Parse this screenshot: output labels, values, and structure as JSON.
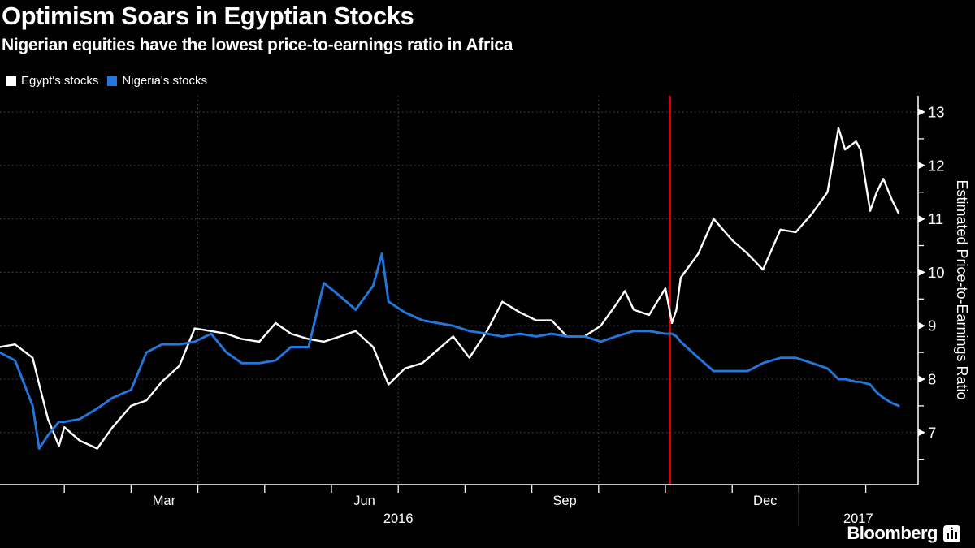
{
  "header": {
    "title": "Optimism Soars in Egyptian Stocks",
    "subtitle": "Nigerian equities have the lowest price-to-earnings ratio in Africa"
  },
  "legend": {
    "items": [
      {
        "label": "Egypt's stocks",
        "color": "#ffffff"
      },
      {
        "label": "Nigeria's stocks",
        "color": "#2377dc"
      }
    ]
  },
  "branding": {
    "logo_text": "Bloomberg"
  },
  "chart_data": {
    "type": "line",
    "title": "Optimism Soars in Egyptian Stocks",
    "subtitle": "Nigerian equities have the lowest price-to-earnings ratio in Africa",
    "xlabel": "",
    "ylabel": "Estimated Price-to-Earnings Ratio",
    "grid": true,
    "legend_position": "top-left",
    "background_color": "#000000",
    "gridline_color": "#4d4d4d",
    "axis_color": "#ffffff",
    "y_axis": {
      "side": "right",
      "ticks": [
        13,
        12,
        11,
        10,
        9,
        8,
        7
      ],
      "minor_ticks": [
        12.5,
        11.5,
        10.5,
        9.5,
        8.5,
        7.5,
        6.5
      ],
      "ylim": [
        6.0,
        13.3
      ]
    },
    "x_axis": {
      "start": "2016-01-01",
      "end": "2017-02-24",
      "month_boundaries": [
        "2016-02-01",
        "2016-03-01",
        "2016-04-01",
        "2016-05-01",
        "2016-06-01",
        "2016-07-01",
        "2016-08-01",
        "2016-09-01",
        "2016-10-01",
        "2016-11-01",
        "2016-12-01",
        "2017-01-01",
        "2017-02-01"
      ],
      "month_labels": [
        {
          "text": "Mar",
          "center": "2016-03-16"
        },
        {
          "text": "Jun",
          "center": "2016-06-16"
        },
        {
          "text": "Sep",
          "center": "2016-09-16"
        },
        {
          "text": "Dec",
          "center": "2016-12-16"
        }
      ],
      "year_labels": [
        {
          "text": "2016",
          "center": "2016-07-01"
        },
        {
          "text": "2017",
          "center": "2017-01-28"
        }
      ],
      "quarter_gridlines": [
        "2016-04-01",
        "2016-07-01",
        "2016-10-01",
        "2017-01-01"
      ],
      "year_divider": "2017-01-01"
    },
    "event_line": {
      "date": "2016-11-03",
      "color": "#e60000"
    },
    "x": [
      "2016-01-02",
      "2016-01-09",
      "2016-01-17",
      "2016-01-20",
      "2016-01-24",
      "2016-01-29",
      "2016-02-01",
      "2016-02-08",
      "2016-02-16",
      "2016-02-23",
      "2016-03-01",
      "2016-03-08",
      "2016-03-15",
      "2016-03-23",
      "2016-03-30",
      "2016-04-07",
      "2016-04-14",
      "2016-04-21",
      "2016-04-29",
      "2016-05-06",
      "2016-05-13",
      "2016-05-21",
      "2016-05-28",
      "2016-06-05",
      "2016-06-12",
      "2016-06-20",
      "2016-06-24",
      "2016-06-27",
      "2016-07-04",
      "2016-07-12",
      "2016-07-19",
      "2016-07-26",
      "2016-08-03",
      "2016-08-11",
      "2016-08-18",
      "2016-08-26",
      "2016-09-03",
      "2016-09-10",
      "2016-09-17",
      "2016-09-25",
      "2016-10-02",
      "2016-10-09",
      "2016-10-13",
      "2016-10-17",
      "2016-10-24",
      "2016-11-01",
      "2016-11-04",
      "2016-11-06",
      "2016-11-08",
      "2016-11-16",
      "2016-11-23",
      "2016-12-01",
      "2016-12-08",
      "2016-12-15",
      "2016-12-23",
      "2016-12-30",
      "2017-01-07",
      "2017-01-14",
      "2017-01-19",
      "2017-01-22",
      "2017-01-27",
      "2017-01-29",
      "2017-02-03",
      "2017-02-06",
      "2017-02-09",
      "2017-02-13",
      "2017-02-16"
    ],
    "series": [
      {
        "name": "Egypt's stocks",
        "color": "#ffffff",
        "values": [
          8.6,
          8.65,
          8.4,
          7.9,
          7.25,
          6.75,
          7.1,
          6.85,
          6.7,
          7.1,
          7.5,
          7.6,
          7.95,
          8.25,
          8.95,
          8.9,
          8.85,
          8.75,
          8.7,
          9.05,
          8.85,
          8.75,
          8.7,
          8.8,
          8.9,
          8.6,
          8.2,
          7.9,
          8.2,
          8.3,
          8.55,
          8.8,
          8.4,
          8.9,
          9.45,
          9.25,
          9.1,
          9.1,
          8.8,
          8.8,
          9.0,
          9.4,
          9.65,
          9.3,
          9.2,
          9.7,
          9.05,
          9.3,
          9.9,
          10.35,
          11.0,
          10.6,
          10.35,
          10.05,
          10.8,
          10.75,
          11.1,
          11.5,
          12.7,
          12.3,
          12.45,
          12.3,
          11.15,
          11.5,
          11.75,
          11.35,
          11.1
        ]
      },
      {
        "name": "Nigeria's stocks",
        "color": "#2377dc",
        "values": [
          8.5,
          8.35,
          7.5,
          6.7,
          6.95,
          7.2,
          7.2,
          7.25,
          7.45,
          7.65,
          7.8,
          8.5,
          8.65,
          8.65,
          8.7,
          8.85,
          8.5,
          8.3,
          8.3,
          8.35,
          8.6,
          8.6,
          9.8,
          9.55,
          9.3,
          9.75,
          10.35,
          9.45,
          9.25,
          9.1,
          9.05,
          9.0,
          8.9,
          8.85,
          8.8,
          8.85,
          8.8,
          8.85,
          8.8,
          8.8,
          8.7,
          8.8,
          8.85,
          8.9,
          8.9,
          8.85,
          8.85,
          8.8,
          8.7,
          8.4,
          8.15,
          8.15,
          8.15,
          8.3,
          8.4,
          8.4,
          8.3,
          8.2,
          8.0,
          8.0,
          7.95,
          7.95,
          7.9,
          7.75,
          7.65,
          7.55,
          7.5
        ]
      }
    ]
  }
}
